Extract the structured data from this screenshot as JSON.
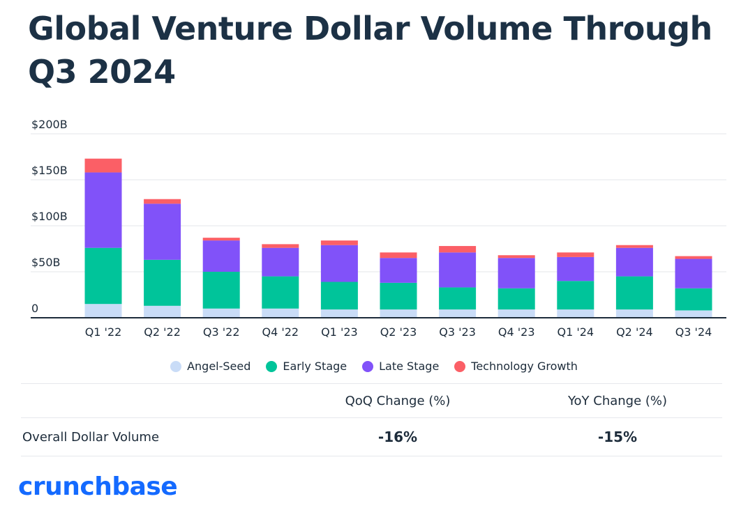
{
  "title": "Global Venture Dollar Volume Through Q3 2024",
  "chart_data": {
    "type": "bar",
    "stacked": true,
    "categories": [
      "Q1 '22",
      "Q2 '22",
      "Q3 '22",
      "Q4 '22",
      "Q1 '23",
      "Q2 '23",
      "Q3 '23",
      "Q4 '23",
      "Q1 '24",
      "Q2 '24",
      "Q3 '24"
    ],
    "series": [
      {
        "name": "Angel-Seed",
        "color": "#c9dcf7",
        "values": [
          15,
          13,
          10,
          10,
          9,
          9,
          9,
          9,
          9,
          9,
          8
        ]
      },
      {
        "name": "Early Stage",
        "color": "#00c49a",
        "values": [
          61,
          50,
          40,
          35,
          30,
          29,
          24,
          23,
          31,
          36,
          24
        ]
      },
      {
        "name": "Late Stage",
        "color": "#8152f9",
        "values": [
          82,
          61,
          34,
          31,
          40,
          27,
          38,
          33,
          26,
          31,
          32
        ]
      },
      {
        "name": "Technology Growth",
        "color": "#fb5f66",
        "values": [
          15,
          5,
          3,
          4,
          5,
          6,
          7,
          3,
          5,
          3,
          3
        ]
      }
    ],
    "y_tick_labels": [
      "0",
      "$50B",
      "$100B",
      "$150B",
      "$200B"
    ],
    "y_ticks": [
      0,
      50,
      100,
      150,
      200
    ],
    "ylim": [
      0,
      200
    ],
    "grid": true,
    "legend_position": "bottom-center"
  },
  "table": {
    "headers": [
      "QoQ Change (%)",
      "YoY Change (%)"
    ],
    "row": {
      "label": "Overall Dollar Volume",
      "qoq": "-16%",
      "yoy": "-15%"
    }
  },
  "logo": "crunchbase"
}
